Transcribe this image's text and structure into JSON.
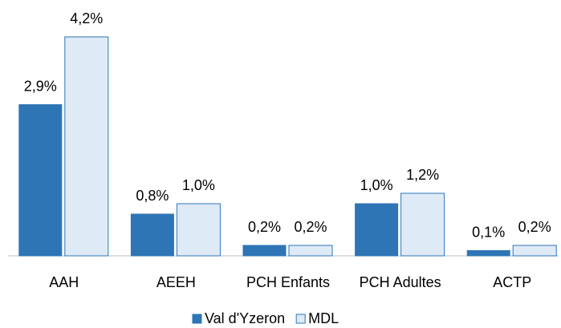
{
  "chart_data": {
    "type": "bar",
    "categories": [
      "AAH",
      "AEEH",
      "PCH Enfants",
      "PCH Adultes",
      "ACTP"
    ],
    "series": [
      {
        "name": "Val d'Yzeron",
        "color": "#2e75b6",
        "values": [
          2.9,
          0.8,
          0.2,
          1.0,
          0.1
        ],
        "value_labels": [
          "2,9%",
          "0,8%",
          "0,2%",
          "1,0%",
          "0,1%"
        ]
      },
      {
        "name": "MDL",
        "color": "#deebf7",
        "values": [
          4.2,
          1.0,
          0.2,
          1.2,
          0.2
        ],
        "value_labels": [
          "4,2%",
          "1,0%",
          "0,2%",
          "1,2%",
          "0,2%"
        ]
      }
    ],
    "ylim": [
      0,
      4.5
    ],
    "legend": "bottom"
  }
}
